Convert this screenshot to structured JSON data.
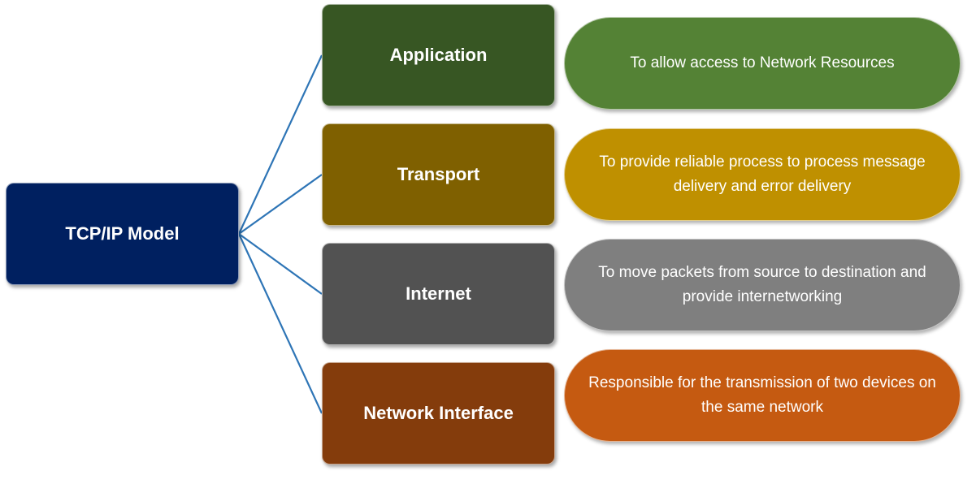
{
  "root": {
    "label": "TCP/IP Model",
    "color": "#002060"
  },
  "connector_color": "#2E75B6",
  "layers": [
    {
      "name": "Application",
      "color": "#375623",
      "description": "To allow access to Network Resources",
      "description_color": "#548235"
    },
    {
      "name": "Transport",
      "color": "#7F6000",
      "description": "To provide reliable process to process message delivery and error delivery",
      "description_color": "#BF9000"
    },
    {
      "name": "Internet",
      "color": "#525252",
      "description": "To move packets from source to destination and provide internetworking",
      "description_color": "#7F7F7F"
    },
    {
      "name": "Network Interface",
      "color": "#843C0C",
      "description": "Responsible for the transmission of two devices on the same network",
      "description_color": "#C55A11"
    }
  ]
}
